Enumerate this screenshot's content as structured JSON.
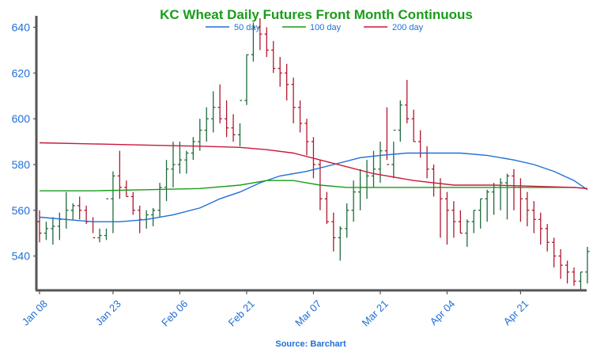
{
  "colors": {
    "title": "#1a9c1a",
    "axis_text": "#1f6fd6",
    "axis_line": "#555555",
    "up": "#1f6b3a",
    "down": "#b0182e",
    "ma50": "#1f6fd6",
    "ma100": "#1a9c1a",
    "ma200": "#c8193a"
  },
  "chart_data": {
    "type": "line",
    "title": "KC Wheat Daily Futures Front Month Continuous",
    "source": "Source: Barchart",
    "xlabel": "",
    "ylabel": "",
    "ylim": [
      525,
      645
    ],
    "y_ticks": [
      540,
      560,
      580,
      600,
      620,
      640
    ],
    "x_ticks": [
      {
        "label": "Jan 08",
        "index": 0
      },
      {
        "label": "Jan 23",
        "index": 11
      },
      {
        "label": "Feb 06",
        "index": 21
      },
      {
        "label": "Feb 21",
        "index": 31
      },
      {
        "label": "Mar 07",
        "index": 41
      },
      {
        "label": "Mar 21",
        "index": 51
      },
      {
        "label": "Apr 04",
        "index": 61
      },
      {
        "label": "Apr 21",
        "index": 72
      }
    ],
    "grid": false,
    "legend": "top",
    "ohlc": {
      "open": [
        555,
        550,
        552,
        553,
        556,
        560,
        562,
        560,
        555,
        548,
        549,
        565,
        575,
        570,
        566,
        560,
        556,
        558,
        560,
        570,
        578,
        580,
        582,
        585,
        590,
        595,
        600,
        605,
        600,
        596,
        593,
        608,
        628,
        640,
        637,
        630,
        622,
        620,
        615,
        605,
        598,
        590,
        580,
        565,
        555,
        548,
        552,
        560,
        568,
        570,
        575,
        578,
        586,
        580,
        595,
        606,
        600,
        590,
        585,
        578,
        570,
        565,
        560,
        555,
        550,
        555,
        560,
        565,
        568,
        570,
        572,
        575,
        570,
        565,
        560,
        556,
        552,
        546,
        540,
        536,
        533,
        529,
        533
      ],
      "high": [
        560,
        555,
        557,
        559,
        568,
        563,
        566,
        562,
        557,
        552,
        552,
        577,
        586,
        573,
        568,
        562,
        560,
        561,
        572,
        582,
        590,
        590,
        586,
        592,
        600,
        605,
        612,
        615,
        608,
        602,
        598,
        628,
        642,
        644,
        640,
        634,
        627,
        624,
        618,
        608,
        600,
        592,
        582,
        568,
        559,
        553,
        563,
        573,
        578,
        582,
        586,
        590,
        605,
        590,
        608,
        617,
        604,
        595,
        588,
        580,
        574,
        568,
        564,
        560,
        556,
        560,
        565,
        569,
        572,
        574,
        576,
        578,
        574,
        568,
        564,
        559,
        554,
        548,
        543,
        538,
        535,
        533,
        544
      ],
      "low": [
        546,
        547,
        545,
        547,
        552,
        556,
        556,
        554,
        550,
        546,
        547,
        550,
        565,
        566,
        558,
        550,
        552,
        553,
        557,
        564,
        570,
        576,
        576,
        582,
        586,
        590,
        594,
        598,
        592,
        590,
        588,
        606,
        625,
        630,
        627,
        620,
        614,
        608,
        598,
        594,
        584,
        574,
        560,
        554,
        542,
        538,
        548,
        555,
        560,
        565,
        570,
        572,
        582,
        574,
        590,
        598,
        590,
        583,
        574,
        566,
        548,
        545,
        548,
        550,
        544,
        550,
        552,
        555,
        558,
        560,
        556,
        560,
        555,
        553,
        550,
        545,
        542,
        535,
        530,
        528,
        527,
        525,
        528
      ],
      "close": [
        550,
        552,
        553,
        556,
        560,
        562,
        560,
        555,
        548,
        549,
        565,
        575,
        570,
        566,
        560,
        556,
        558,
        560,
        570,
        578,
        580,
        582,
        585,
        590,
        595,
        600,
        605,
        600,
        596,
        593,
        608,
        628,
        640,
        637,
        630,
        622,
        620,
        615,
        605,
        598,
        590,
        580,
        565,
        555,
        548,
        552,
        560,
        568,
        570,
        575,
        578,
        586,
        580,
        595,
        606,
        600,
        590,
        585,
        578,
        570,
        565,
        560,
        555,
        550,
        555,
        560,
        565,
        568,
        570,
        572,
        575,
        570,
        565,
        560,
        556,
        552,
        546,
        540,
        536,
        533,
        529,
        533,
        542
      ]
    },
    "series": [
      {
        "name": "50 day",
        "x": [
          0,
          4,
          8,
          12,
          16,
          20,
          24,
          27,
          30,
          33,
          36,
          40,
          44,
          48,
          51,
          55,
          59,
          63,
          67,
          71,
          74,
          77,
          80,
          82
        ],
        "values": [
          557,
          556,
          555,
          555,
          556,
          558,
          561,
          565,
          568,
          572,
          575,
          577,
          580,
          583,
          584,
          585,
          585,
          585,
          584,
          582,
          580,
          577,
          573,
          569
        ]
      },
      {
        "name": "100 day",
        "x": [
          0,
          8,
          16,
          24,
          30,
          34,
          38,
          42,
          46,
          50,
          56,
          62,
          68,
          74,
          80,
          82
        ],
        "values": [
          568.5,
          568.5,
          569,
          569.5,
          571,
          573,
          573,
          571,
          570,
          570,
          570,
          570,
          570,
          570,
          570,
          569.5
        ]
      },
      {
        "name": "200 day",
        "x": [
          0,
          8,
          16,
          24,
          30,
          34,
          38,
          42,
          46,
          50,
          56,
          62,
          68,
          74,
          80,
          82
        ],
        "values": [
          589.5,
          589,
          588.5,
          588,
          587.5,
          586.5,
          585,
          582,
          579,
          576,
          573,
          571,
          571,
          570.5,
          570,
          569.5
        ]
      }
    ]
  }
}
